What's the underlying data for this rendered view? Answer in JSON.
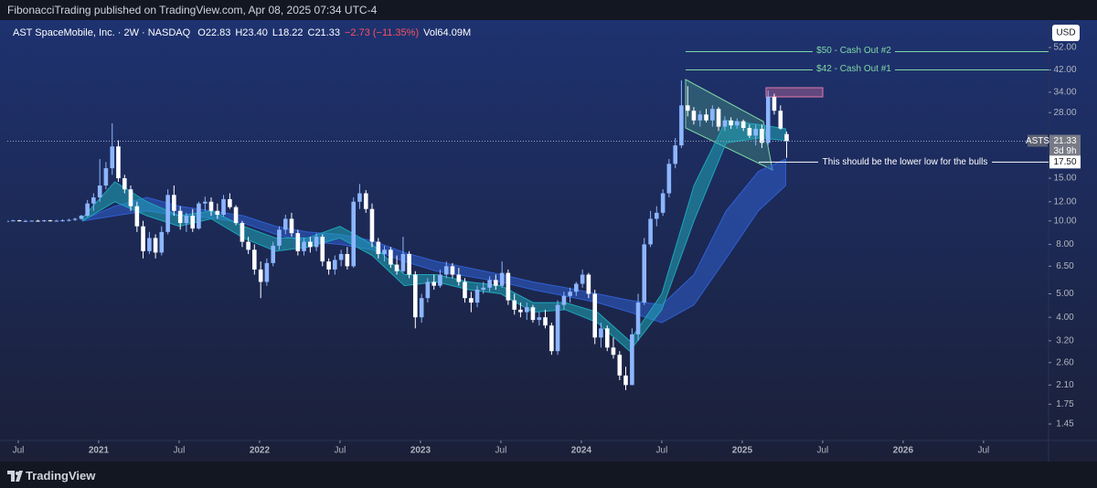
{
  "header": {
    "publisher": "FibonacciTrading published on TradingView.com, Apr 08, 2025 07:34 UTC-4"
  },
  "footer": {
    "brand": "TradingView"
  },
  "chart_data": {
    "type": "candlestick",
    "title": "AST SpaceMobile, Inc. · 2W · NASDAQ",
    "legend_values": [
      "O22.83",
      "H23.40",
      "L18.22",
      "C21.33",
      "−2.73 (−11.35%)",
      "Vol64.09M"
    ],
    "currency": "USD",
    "symbol": "ASTS",
    "countdown": "3d 9h",
    "log_scale": true,
    "up_color": "#8db6ff",
    "down_color": "#ffffff",
    "xlim": [
      2020.432,
      2026.904
    ],
    "xticks": [
      {
        "value": 2020.5,
        "label": "Jul"
      },
      {
        "value": 2021,
        "label": "2021"
      },
      {
        "value": 2021.5,
        "label": "Jul"
      },
      {
        "value": 2022,
        "label": "2022"
      },
      {
        "value": 2022.5,
        "label": "Jul"
      },
      {
        "value": 2023,
        "label": "2023"
      },
      {
        "value": 2023.5,
        "label": "Jul"
      },
      {
        "value": 2024,
        "label": "2024"
      },
      {
        "value": 2024.5,
        "label": "Jul"
      },
      {
        "value": 2025,
        "label": "2025"
      },
      {
        "value": 2025.5,
        "label": "Jul"
      },
      {
        "value": 2026,
        "label": "2026"
      },
      {
        "value": 2026.5,
        "label": "Jul"
      }
    ],
    "ylim": [
      1.24,
      66.3
    ],
    "yticks": [
      {
        "value": 1.45,
        "label": "1.45"
      },
      {
        "value": 1.75,
        "label": "1.75"
      },
      {
        "value": 2.1,
        "label": "2.10"
      },
      {
        "value": 2.6,
        "label": "2.60"
      },
      {
        "value": 3.2,
        "label": "3.20"
      },
      {
        "value": 4,
        "label": "4.00"
      },
      {
        "value": 5,
        "label": "5.00"
      },
      {
        "value": 6.5,
        "label": "6.50"
      },
      {
        "value": 8,
        "label": "8.00"
      },
      {
        "value": 10,
        "label": "10.00"
      },
      {
        "value": 12,
        "label": "12.00"
      },
      {
        "value": 15,
        "label": "15.00"
      },
      {
        "value": 28,
        "label": "28.00"
      },
      {
        "value": 34,
        "label": "34.00"
      },
      {
        "value": 42,
        "label": "42.00"
      },
      {
        "value": 52,
        "label": "52.00"
      }
    ],
    "last_price": {
      "value": 21.33,
      "label": "21.33"
    },
    "annotations": [
      {
        "text": "$50 - Cash Out #2",
        "value": 50,
        "color": "#7fd8a6"
      },
      {
        "text": "$42 - Cash Out #1",
        "value": 42,
        "color": "#7fd8a6"
      },
      {
        "text": "This should be the lower low for the bulls",
        "value": 17.5,
        "label": "17.50",
        "color": "#ffffff"
      }
    ],
    "x": [
      2020.43,
      2020.468,
      2020.507,
      2020.545,
      2020.584,
      2020.622,
      2020.661,
      2020.699,
      2020.738,
      2020.776,
      2020.815,
      2020.853,
      2020.892,
      2020.93,
      2020.968,
      2021.007,
      2021.045,
      2021.084,
      2021.122,
      2021.161,
      2021.199,
      2021.238,
      2021.276,
      2021.315,
      2021.353,
      2021.391,
      2021.43,
      2021.468,
      2021.507,
      2021.545,
      2021.584,
      2021.622,
      2021.661,
      2021.699,
      2021.738,
      2021.776,
      2021.815,
      2021.853,
      2021.892,
      2021.93,
      2021.968,
      2022.007,
      2022.045,
      2022.084,
      2022.122,
      2022.161,
      2022.199,
      2022.238,
      2022.276,
      2022.315,
      2022.353,
      2022.391,
      2022.43,
      2022.468,
      2022.507,
      2022.545,
      2022.584,
      2022.622,
      2022.661,
      2022.699,
      2022.738,
      2022.776,
      2022.815,
      2022.853,
      2022.892,
      2022.93,
      2022.968,
      2023.007,
      2023.045,
      2023.084,
      2023.122,
      2023.161,
      2023.199,
      2023.238,
      2023.276,
      2023.315,
      2023.353,
      2023.391,
      2023.43,
      2023.468,
      2023.507,
      2023.545,
      2023.584,
      2023.622,
      2023.661,
      2023.699,
      2023.738,
      2023.776,
      2023.815,
      2023.853,
      2023.892,
      2023.93,
      2023.968,
      2024.007,
      2024.045,
      2024.084,
      2024.122,
      2024.161,
      2024.199,
      2024.238,
      2024.276,
      2024.315,
      2024.353,
      2024.391,
      2024.43,
      2024.468,
      2024.507,
      2024.545,
      2024.584,
      2024.622,
      2024.661,
      2024.699,
      2024.738,
      2024.776,
      2024.815,
      2024.853,
      2024.892,
      2024.93,
      2024.968,
      2025.007,
      2025.045,
      2025.084,
      2025.122,
      2025.161,
      2025.199,
      2025.238,
      2025.276
    ],
    "candles": [
      [
        10.0,
        10.1,
        9.9,
        10.0
      ],
      [
        10.0,
        10.1,
        9.95,
        10.05
      ],
      [
        10.05,
        10.1,
        9.95,
        10.0
      ],
      [
        10.0,
        10.1,
        9.9,
        10.0
      ],
      [
        10.0,
        10.05,
        9.95,
        10.02
      ],
      [
        10.02,
        10.1,
        9.95,
        10.0
      ],
      [
        10.0,
        10.1,
        9.9,
        10.05
      ],
      [
        10.05,
        10.1,
        9.95,
        10.0
      ],
      [
        10.0,
        10.1,
        9.95,
        10.02
      ],
      [
        10.02,
        10.15,
        9.95,
        10.05
      ],
      [
        10.05,
        10.2,
        9.95,
        10.1
      ],
      [
        10.1,
        10.3,
        10.0,
        10.2
      ],
      [
        10.2,
        10.6,
        10.1,
        10.5
      ],
      [
        10.5,
        12.2,
        10.4,
        11.8
      ],
      [
        11.8,
        13.0,
        11.0,
        12.5
      ],
      [
        12.5,
        18.0,
        12.0,
        14.0
      ],
      [
        14.0,
        17.5,
        13.5,
        16.5
      ],
      [
        16.5,
        25.3,
        15.5,
        20.3
      ],
      [
        20.3,
        21.5,
        14.5,
        15.0
      ],
      [
        15.0,
        15.5,
        13.0,
        13.5
      ],
      [
        13.5,
        14.0,
        11.0,
        11.5
      ],
      [
        11.5,
        12.0,
        9.0,
        9.5
      ],
      [
        9.5,
        10.0,
        7.0,
        7.5
      ],
      [
        7.5,
        9.0,
        7.3,
        8.5
      ],
      [
        8.5,
        8.8,
        7.0,
        7.4
      ],
      [
        7.4,
        9.5,
        7.2,
        9.0
      ],
      [
        9.0,
        13.5,
        8.8,
        12.8
      ],
      [
        12.8,
        14.0,
        10.5,
        11.0
      ],
      [
        11.0,
        11.5,
        9.2,
        9.8
      ],
      [
        9.8,
        10.8,
        9.0,
        10.5
      ],
      [
        10.5,
        11.2,
        9.0,
        9.3
      ],
      [
        9.3,
        12.0,
        9.2,
        11.8
      ],
      [
        11.8,
        12.6,
        11.0,
        12.0
      ],
      [
        12.0,
        12.5,
        10.5,
        11.0
      ],
      [
        11.0,
        11.8,
        10.2,
        10.6
      ],
      [
        10.6,
        12.8,
        10.4,
        12.3
      ],
      [
        12.3,
        13.0,
        11.2,
        11.4
      ],
      [
        11.4,
        11.6,
        9.6,
        9.8
      ],
      [
        9.8,
        10.0,
        7.8,
        8.2
      ],
      [
        8.2,
        8.6,
        7.3,
        7.6
      ],
      [
        7.6,
        8.0,
        6.0,
        6.3
      ],
      [
        6.3,
        6.8,
        4.8,
        5.6
      ],
      [
        5.6,
        7.0,
        5.4,
        6.7
      ],
      [
        6.7,
        8.2,
        6.5,
        7.9
      ],
      [
        7.9,
        9.5,
        7.6,
        9.2
      ],
      [
        9.2,
        10.6,
        8.8,
        10.2
      ],
      [
        10.2,
        10.8,
        8.6,
        8.9
      ],
      [
        8.9,
        9.2,
        7.2,
        7.5
      ],
      [
        7.5,
        8.5,
        7.2,
        8.2
      ],
      [
        8.2,
        8.6,
        7.4,
        7.8
      ],
      [
        7.8,
        8.9,
        7.5,
        8.6
      ],
      [
        8.6,
        8.8,
        6.5,
        6.8
      ],
      [
        6.8,
        7.0,
        6.0,
        6.3
      ],
      [
        6.3,
        7.2,
        6.0,
        6.9
      ],
      [
        6.9,
        7.6,
        6.5,
        7.3
      ],
      [
        7.3,
        7.8,
        6.3,
        6.5
      ],
      [
        6.5,
        12.5,
        6.4,
        12.0
      ],
      [
        12.0,
        14.2,
        11.2,
        13.0
      ],
      [
        13.0,
        13.4,
        10.8,
        11.2
      ],
      [
        11.2,
        11.8,
        7.8,
        8.2
      ],
      [
        8.2,
        8.5,
        7.0,
        7.3
      ],
      [
        7.3,
        7.9,
        6.8,
        7.6
      ],
      [
        7.6,
        7.8,
        6.4,
        6.6
      ],
      [
        6.6,
        7.2,
        6.0,
        6.2
      ],
      [
        6.2,
        8.6,
        6.1,
        7.3
      ],
      [
        7.3,
        7.5,
        5.8,
        6.0
      ],
      [
        6.0,
        6.2,
        3.6,
        4.0
      ],
      [
        4.0,
        5.0,
        3.8,
        4.8
      ],
      [
        4.8,
        5.8,
        4.6,
        5.6
      ],
      [
        5.6,
        6.0,
        5.2,
        5.4
      ],
      [
        5.4,
        6.3,
        5.3,
        6.0
      ],
      [
        6.0,
        6.8,
        5.8,
        6.5
      ],
      [
        6.5,
        6.7,
        5.8,
        6.0
      ],
      [
        6.0,
        6.4,
        5.4,
        5.6
      ],
      [
        5.6,
        5.8,
        4.6,
        4.8
      ],
      [
        4.8,
        5.1,
        4.2,
        4.6
      ],
      [
        4.6,
        5.4,
        4.4,
        5.2
      ],
      [
        5.2,
        5.6,
        5.0,
        5.3
      ],
      [
        5.3,
        5.9,
        5.1,
        5.7
      ],
      [
        5.7,
        6.0,
        5.2,
        5.4
      ],
      [
        5.4,
        6.8,
        5.3,
        6.1
      ],
      [
        6.1,
        6.3,
        4.5,
        4.7
      ],
      [
        4.7,
        5.0,
        4.1,
        4.3
      ],
      [
        4.3,
        4.6,
        4.0,
        4.2
      ],
      [
        4.2,
        4.6,
        3.9,
        4.4
      ],
      [
        4.4,
        4.5,
        3.8,
        3.9
      ],
      [
        3.9,
        4.2,
        3.7,
        4.0
      ],
      [
        4.0,
        4.3,
        3.6,
        3.7
      ],
      [
        3.7,
        3.8,
        2.8,
        2.9
      ],
      [
        2.9,
        4.7,
        2.8,
        4.5
      ],
      [
        4.5,
        5.1,
        4.3,
        4.9
      ],
      [
        4.9,
        5.3,
        4.6,
        5.1
      ],
      [
        5.1,
        5.6,
        4.9,
        5.5
      ],
      [
        5.5,
        6.3,
        5.3,
        6.0
      ],
      [
        6.0,
        6.1,
        4.8,
        5.0
      ],
      [
        5.0,
        5.2,
        3.1,
        3.3
      ],
      [
        3.3,
        3.8,
        3.0,
        3.6
      ],
      [
        3.6,
        3.7,
        2.9,
        3.0
      ],
      [
        3.0,
        3.3,
        2.7,
        2.8
      ],
      [
        2.8,
        2.9,
        2.2,
        2.3
      ],
      [
        2.3,
        2.5,
        2.0,
        2.1
      ],
      [
        2.1,
        3.6,
        2.1,
        3.4
      ],
      [
        3.4,
        5.0,
        3.2,
        4.6
      ],
      [
        4.6,
        8.5,
        4.5,
        8.0
      ],
      [
        8.0,
        11.0,
        7.8,
        10.2
      ],
      [
        10.2,
        11.5,
        9.5,
        10.8
      ],
      [
        10.8,
        13.5,
        10.5,
        13.0
      ],
      [
        13.0,
        18.0,
        12.5,
        17.2
      ],
      [
        17.2,
        22.0,
        16.5,
        20.5
      ],
      [
        20.5,
        38.0,
        20.0,
        30.0
      ],
      [
        30.0,
        36.0,
        27.0,
        28.5
      ],
      [
        28.5,
        29.5,
        25.0,
        26.0
      ],
      [
        26.0,
        28.5,
        24.5,
        27.5
      ],
      [
        27.5,
        29.0,
        25.5,
        26.0
      ],
      [
        26.0,
        30.0,
        24.5,
        29.0
      ],
      [
        29.0,
        29.5,
        23.5,
        24.5
      ],
      [
        24.5,
        27.0,
        23.5,
        26.0
      ],
      [
        26.0,
        26.8,
        24.0,
        24.8
      ],
      [
        24.8,
        26.5,
        24.0,
        25.8
      ],
      [
        25.8,
        26.2,
        23.5,
        24.2
      ],
      [
        24.2,
        25.0,
        22.0,
        22.5
      ],
      [
        22.5,
        25.0,
        20.5,
        24.0
      ],
      [
        24.0,
        25.0,
        20.0,
        21.0
      ],
      [
        21.0,
        34.5,
        20.5,
        32.5
      ],
      [
        32.5,
        33.5,
        27.5,
        28.5
      ],
      [
        28.5,
        30.0,
        23.8,
        24.06
      ],
      [
        22.83,
        23.4,
        18.22,
        21.33
      ]
    ],
    "ribbon_x": [
      2020.9,
      2021.1,
      2021.3,
      2021.5,
      2021.7,
      2021.9,
      2022.1,
      2022.3,
      2022.5,
      2022.7,
      2022.9,
      2023.1,
      2023.3,
      2023.5,
      2023.7,
      2023.9,
      2024.1,
      2024.3,
      2024.5,
      2024.7,
      2024.9,
      2025.1,
      2025.27
    ],
    "ribbons": [
      {
        "color": "#2f5fd0",
        "upper": [
          10.1,
          11.5,
          12.5,
          11.5,
          11.0,
          10.5,
          9.5,
          9.0,
          8.8,
          8.3,
          7.4,
          6.8,
          6.4,
          6.0,
          5.6,
          5.3,
          5.0,
          4.7,
          4.5,
          6.0,
          11.0,
          16.0,
          18.0
        ],
        "lower": [
          10.0,
          10.5,
          11.0,
          10.5,
          10.3,
          9.8,
          8.8,
          8.2,
          8.0,
          7.6,
          6.8,
          6.2,
          5.9,
          5.6,
          5.2,
          4.9,
          4.6,
          4.2,
          3.8,
          4.5,
          7.0,
          11.0,
          14.0
        ]
      },
      {
        "color": "#1fa5b8",
        "upper": [
          10.3,
          14.5,
          12.0,
          10.5,
          11.0,
          9.5,
          8.5,
          8.5,
          9.5,
          8.0,
          6.0,
          6.0,
          5.6,
          5.4,
          4.6,
          4.6,
          4.2,
          3.2,
          5.0,
          14.0,
          26.0,
          25.0,
          24.0
        ],
        "lower": [
          10.0,
          12.0,
          10.5,
          9.5,
          10.2,
          8.5,
          7.5,
          7.8,
          8.5,
          7.2,
          5.4,
          5.6,
          5.2,
          5.0,
          4.2,
          4.3,
          3.8,
          2.9,
          4.3,
          10.0,
          21.0,
          22.0,
          21.5
        ]
      }
    ]
  }
}
